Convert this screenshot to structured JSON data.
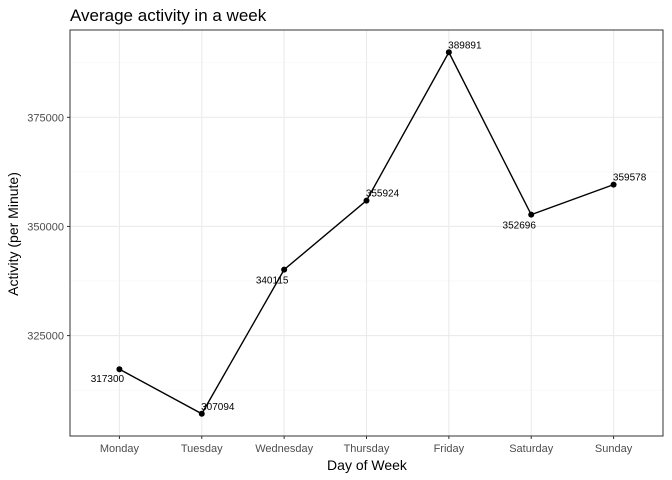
{
  "chart_data": {
    "type": "line",
    "title": "Average activity in a week",
    "xlabel": "Day of Week",
    "ylabel": "Activity (per Minute)",
    "categories": [
      "Monday",
      "Tuesday",
      "Wednesday",
      "Thursday",
      "Friday",
      "Saturday",
      "Sunday"
    ],
    "series": [
      {
        "values": [
          317300,
          307094,
          340115,
          355924,
          389891,
          352696,
          359578
        ]
      }
    ],
    "data_labels": [
      "317300",
      "307094",
      "340115",
      "355924",
      "389891",
      "352696",
      "359578"
    ],
    "ylim": [
      302000,
      395000
    ],
    "y_ticks": [
      325000,
      350000,
      375000
    ],
    "y_tick_labels": [
      "325000",
      "350000",
      "375000"
    ],
    "grid": true,
    "legend": "none",
    "colors": {
      "line": "#000000",
      "grid_major": "#ebebeb",
      "grid_minor": "#f5f5f5",
      "panel_border": "#333333"
    }
  }
}
